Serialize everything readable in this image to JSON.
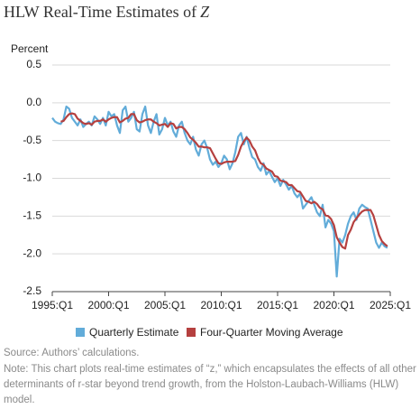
{
  "chart_data": {
    "type": "line",
    "title": "HLW Real-Time Estimates of",
    "title_symbol": "Z",
    "y_label": "Percent",
    "xlim": [
      1995,
      2025
    ],
    "xticks": [
      {
        "value": 1995,
        "label": "1995:Q1"
      },
      {
        "value": 2000,
        "label": "2000:Q1"
      },
      {
        "value": 2005,
        "label": "2005:Q1"
      },
      {
        "value": 2010,
        "label": "2010:Q1"
      },
      {
        "value": 2015,
        "label": "2015:Q1"
      },
      {
        "value": 2020,
        "label": "2020:Q1"
      },
      {
        "value": 2025,
        "label": "2025:Q1"
      }
    ],
    "ylim": [
      -2.5,
      0.5
    ],
    "yticks": [
      0.5,
      {
        "value": 0,
        "label": "0.0"
      },
      -0.5,
      {
        "value": -1,
        "label": "-1.0"
      },
      -1.5,
      {
        "value": -2,
        "label": "-2.0"
      },
      -2.5
    ],
    "grid": true,
    "x": [
      1995,
      1995.25,
      1995.5,
      1995.75,
      1996,
      1996.25,
      1996.5,
      1996.75,
      1997,
      1997.25,
      1997.5,
      1997.75,
      1998,
      1998.25,
      1998.5,
      1998.75,
      1999,
      1999.25,
      1999.5,
      1999.75,
      2000,
      2000.25,
      2000.5,
      2000.75,
      2001,
      2001.25,
      2001.5,
      2001.75,
      2002,
      2002.25,
      2002.5,
      2002.75,
      2003,
      2003.25,
      2003.5,
      2003.75,
      2004,
      2004.25,
      2004.5,
      2004.75,
      2005,
      2005.25,
      2005.5,
      2005.75,
      2006,
      2006.25,
      2006.5,
      2006.75,
      2007,
      2007.25,
      2007.5,
      2007.75,
      2008,
      2008.25,
      2008.5,
      2008.75,
      2009,
      2009.25,
      2009.5,
      2009.75,
      2010,
      2010.25,
      2010.5,
      2010.75,
      2011,
      2011.25,
      2011.5,
      2011.75,
      2012,
      2012.25,
      2012.5,
      2012.75,
      2013,
      2013.25,
      2013.5,
      2013.75,
      2014,
      2014.25,
      2014.5,
      2014.75,
      2015,
      2015.25,
      2015.5,
      2015.75,
      2016,
      2016.25,
      2016.5,
      2016.75,
      2017,
      2017.25,
      2017.5,
      2017.75,
      2018,
      2018.25,
      2018.5,
      2018.75,
      2019,
      2019.25,
      2019.5,
      2019.75,
      2020,
      2020.25,
      2020.5,
      2020.75,
      2021,
      2021.25,
      2021.5,
      2021.75,
      2022,
      2022.25,
      2022.5,
      2022.75,
      2023,
      2023.25,
      2023.5,
      2023.75,
      2024,
      2024.25,
      2024.5,
      2024.75
    ],
    "series": [
      {
        "name": "Quarterly Estimate",
        "color": "#62acd9",
        "width": 2.2,
        "values": [
          -0.2,
          -0.25,
          -0.27,
          -0.28,
          -0.22,
          -0.05,
          -0.08,
          -0.2,
          -0.25,
          -0.3,
          -0.22,
          -0.32,
          -0.28,
          -0.25,
          -0.3,
          -0.18,
          -0.22,
          -0.28,
          -0.2,
          -0.3,
          -0.12,
          -0.18,
          -0.15,
          -0.3,
          -0.4,
          -0.1,
          -0.05,
          -0.25,
          -0.2,
          -0.12,
          -0.35,
          -0.38,
          -0.15,
          -0.05,
          -0.3,
          -0.4,
          -0.25,
          -0.15,
          -0.42,
          -0.35,
          -0.2,
          -0.3,
          -0.25,
          -0.38,
          -0.45,
          -0.3,
          -0.25,
          -0.4,
          -0.5,
          -0.55,
          -0.45,
          -0.62,
          -0.7,
          -0.55,
          -0.5,
          -0.6,
          -0.75,
          -0.82,
          -0.78,
          -0.85,
          -0.8,
          -0.7,
          -0.75,
          -0.88,
          -0.8,
          -0.65,
          -0.45,
          -0.4,
          -0.55,
          -0.45,
          -0.6,
          -0.72,
          -0.75,
          -0.85,
          -0.9,
          -0.8,
          -0.95,
          -0.9,
          -0.98,
          -1.05,
          -1.0,
          -1.1,
          -1.02,
          -1.08,
          -1.15,
          -1.1,
          -1.2,
          -1.25,
          -1.2,
          -1.4,
          -1.35,
          -1.3,
          -1.25,
          -1.35,
          -1.45,
          -1.5,
          -1.35,
          -1.65,
          -1.55,
          -1.6,
          -1.7,
          -2.3,
          -1.8,
          -1.85,
          -1.75,
          -1.6,
          -1.5,
          -1.45,
          -1.55,
          -1.4,
          -1.35,
          -1.38,
          -1.4,
          -1.55,
          -1.7,
          -1.85,
          -1.92,
          -1.85,
          -1.9,
          -1.92
        ]
      },
      {
        "name": "Four-Quarter Moving Average",
        "color": "#b5403f",
        "width": 2.2,
        "values": [
          null,
          null,
          null,
          -0.25,
          -0.24,
          -0.19,
          -0.15,
          -0.14,
          -0.15,
          -0.21,
          -0.24,
          -0.27,
          -0.28,
          -0.27,
          -0.29,
          -0.25,
          -0.24,
          -0.24,
          -0.22,
          -0.25,
          -0.22,
          -0.2,
          -0.19,
          -0.19,
          -0.26,
          -0.24,
          -0.21,
          -0.2,
          -0.15,
          -0.15,
          -0.23,
          -0.26,
          -0.25,
          -0.23,
          -0.22,
          -0.22,
          -0.25,
          -0.27,
          -0.3,
          -0.29,
          -0.28,
          -0.32,
          -0.27,
          -0.28,
          -0.34,
          -0.32,
          -0.32,
          -0.35,
          -0.4,
          -0.46,
          -0.49,
          -0.53,
          -0.58,
          -0.58,
          -0.59,
          -0.59,
          -0.6,
          -0.67,
          -0.74,
          -0.8,
          -0.81,
          -0.79,
          -0.78,
          -0.78,
          -0.78,
          -0.77,
          -0.69,
          -0.58,
          -0.51,
          -0.46,
          -0.5,
          -0.58,
          -0.63,
          -0.73,
          -0.8,
          -0.82,
          -0.87,
          -0.89,
          -0.91,
          -0.97,
          -0.98,
          -1.03,
          -1.04,
          -1.05,
          -1.09,
          -1.09,
          -1.13,
          -1.17,
          -1.18,
          -1.24,
          -1.3,
          -1.31,
          -1.33,
          -1.31,
          -1.34,
          -1.39,
          -1.41,
          -1.49,
          -1.5,
          -1.54,
          -1.62,
          -1.78,
          -1.85,
          -1.91,
          -1.93,
          -1.75,
          -1.68,
          -1.58,
          -1.53,
          -1.48,
          -1.44,
          -1.42,
          -1.42,
          -1.42,
          -1.49,
          -1.62,
          -1.75,
          -1.83,
          -1.87,
          -1.9
        ]
      }
    ],
    "source": "Source: Authors’ calculations.",
    "note": "Note: This chart plots real-time estimates of “z,” which encapsulates the effects of all other determinants of r-star beyond trend growth, from the Holston-Laubach-Williams (HLW) model."
  }
}
